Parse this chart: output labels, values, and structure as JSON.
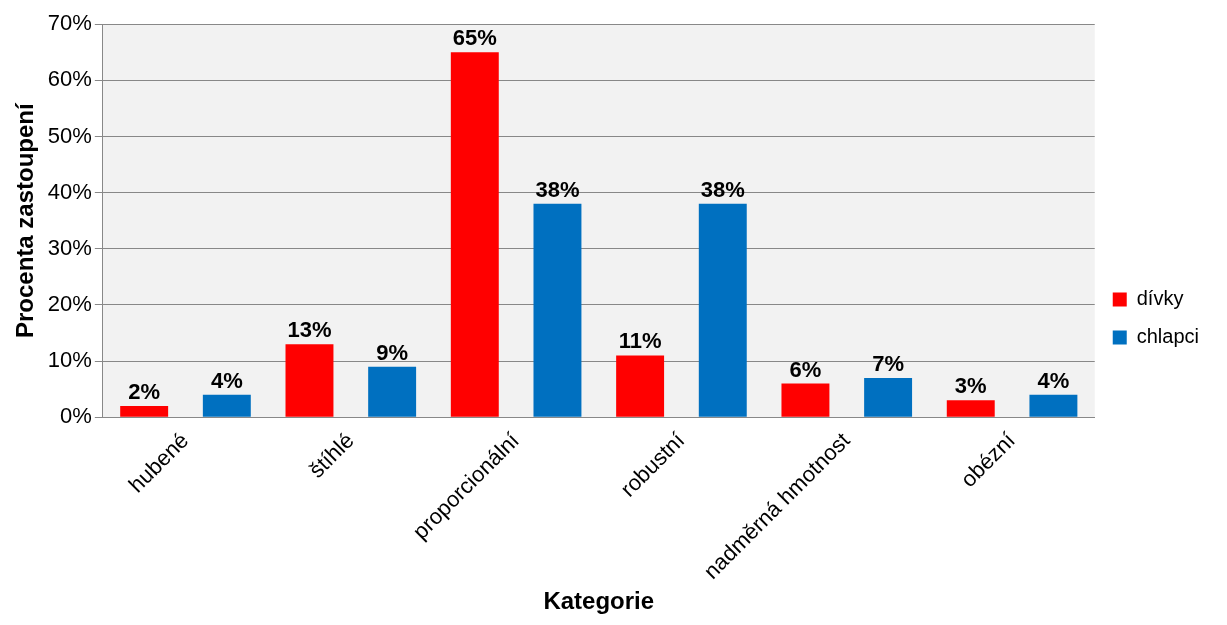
{
  "chart_data": {
    "type": "bar",
    "xlabel": "Kategorie",
    "ylabel": "Procenta zastoupení",
    "categories": [
      "hubené",
      "štíhlé",
      "proporcionální",
      "robustní",
      "nadměrná hmotnost",
      "obézní"
    ],
    "series": [
      {
        "name": "dívky",
        "color": "#ff0000",
        "values": [
          2,
          13,
          65,
          11,
          6,
          3
        ],
        "value_labels": [
          "2%",
          "13%",
          "65%",
          "11%",
          "6%",
          "3%"
        ]
      },
      {
        "name": "chlapci",
        "color": "#0070c0",
        "values": [
          4,
          9,
          38,
          38,
          7,
          4
        ],
        "value_labels": [
          "4%",
          "9%",
          "38%",
          "38%",
          "7%",
          "4%"
        ]
      }
    ],
    "ylim": [
      0,
      70
    ],
    "yticks": [
      {
        "value": 0,
        "label": "0%"
      },
      {
        "value": 10,
        "label": "10%"
      },
      {
        "value": 20,
        "label": "20%"
      },
      {
        "value": 30,
        "label": "30%"
      },
      {
        "value": 40,
        "label": "40%"
      },
      {
        "value": 50,
        "label": "50%"
      },
      {
        "value": 60,
        "label": "60%"
      },
      {
        "value": 70,
        "label": "70%"
      }
    ],
    "grid": "y",
    "legend": "right"
  }
}
